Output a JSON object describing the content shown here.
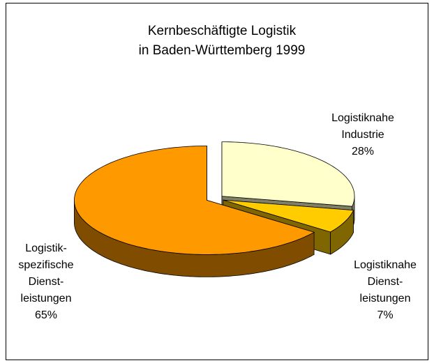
{
  "chart_data": {
    "type": "pie",
    "title": [
      "Kernbeschäftigte Logistik",
      "in Baden-Württemberg 1999"
    ],
    "categories": [
      [
        "Logistiknahe",
        "Industrie"
      ],
      [
        "Logistiknahe",
        "Dienst-",
        "leistungen"
      ],
      [
        "Logistik-",
        "spezifische",
        "Dienst-",
        "leistungen"
      ]
    ],
    "values": [
      28,
      7,
      65
    ],
    "value_labels": [
      "28%",
      "7%",
      "65%"
    ],
    "colors": [
      "#ffffcc",
      "#ffcc00",
      "#ff9900"
    ]
  }
}
